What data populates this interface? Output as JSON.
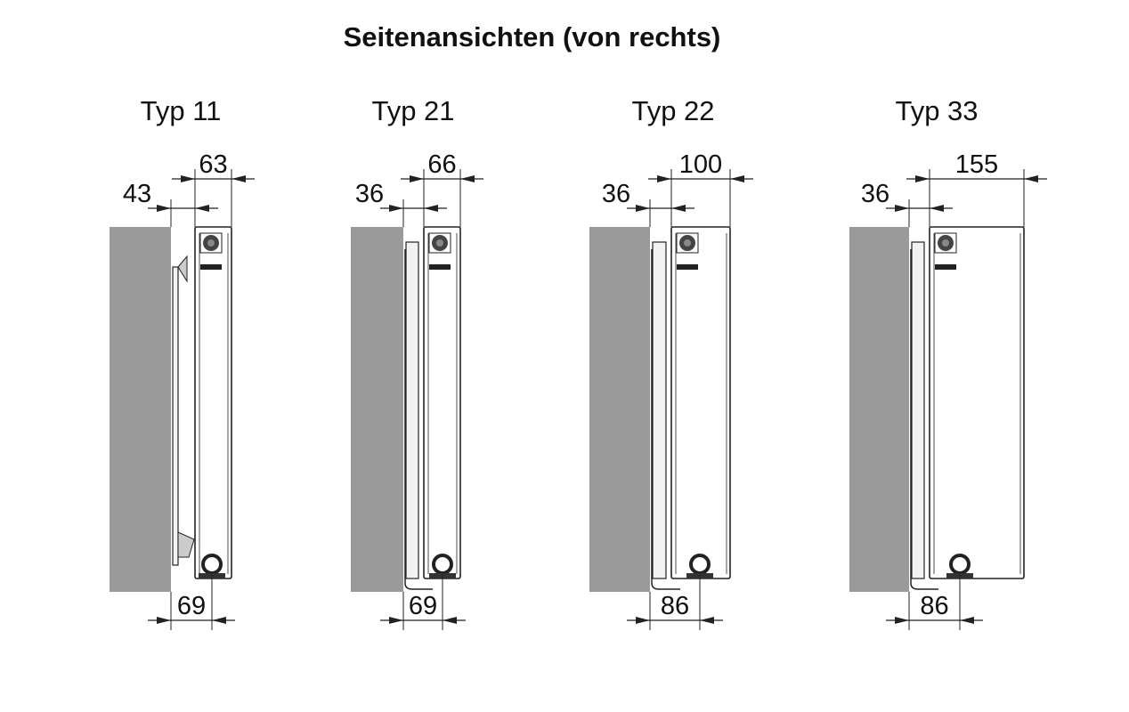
{
  "title": "Seitenansichten (von rechts)",
  "colors": {
    "wall": "#9a9a9a",
    "line": "#222222",
    "radiator_fill": "#ffffff",
    "panel_fill": "#f2f2f2"
  },
  "views": [
    {
      "type_label": "Typ 11",
      "depth_dim": "63",
      "wall_dim": "43",
      "bottom_dim": "69"
    },
    {
      "type_label": "Typ 21",
      "depth_dim": "66",
      "wall_dim": "36",
      "bottom_dim": "69"
    },
    {
      "type_label": "Typ 22",
      "depth_dim": "100",
      "wall_dim": "36",
      "bottom_dim": "86"
    },
    {
      "type_label": "Typ 33",
      "depth_dim": "155",
      "wall_dim": "36",
      "bottom_dim": "86"
    }
  ]
}
